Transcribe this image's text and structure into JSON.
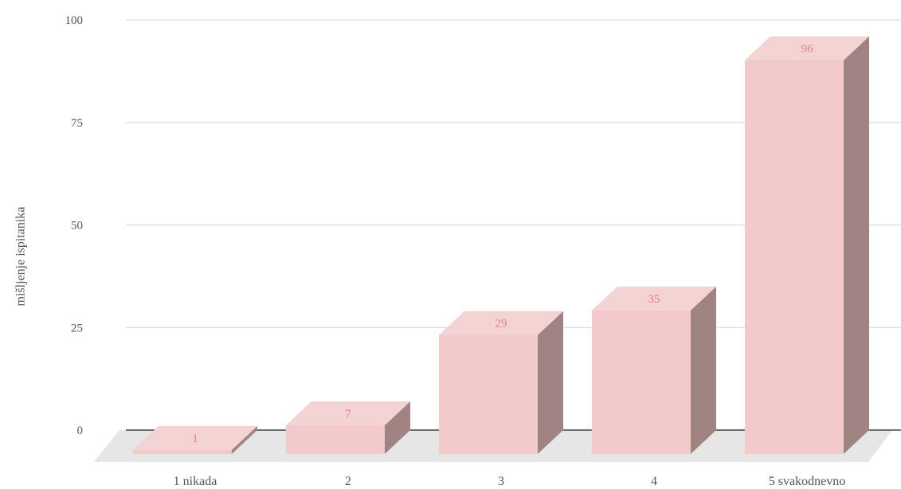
{
  "chart_data": {
    "type": "bar",
    "style": "3d",
    "categories": [
      "1 nikada",
      "2",
      "3",
      "4",
      "5 svakodnevno"
    ],
    "values": [
      1,
      7,
      29,
      35,
      96
    ],
    "data_labels": [
      "1",
      "7",
      "29",
      "35",
      "96"
    ],
    "ylabel": "mišljenje ispitanika",
    "xlabel": "",
    "title": "",
    "ylim": [
      0,
      100
    ],
    "yticks": [
      0,
      25,
      50,
      75,
      100
    ],
    "grid": true,
    "legend": "none",
    "colors": {
      "bar_front": "#f2c9c9",
      "bar_top": "#f5d3d3",
      "bar_side": "#a08484",
      "floor": "#e6e6e6",
      "data_label": "#e07f93",
      "text": "#555555"
    }
  }
}
